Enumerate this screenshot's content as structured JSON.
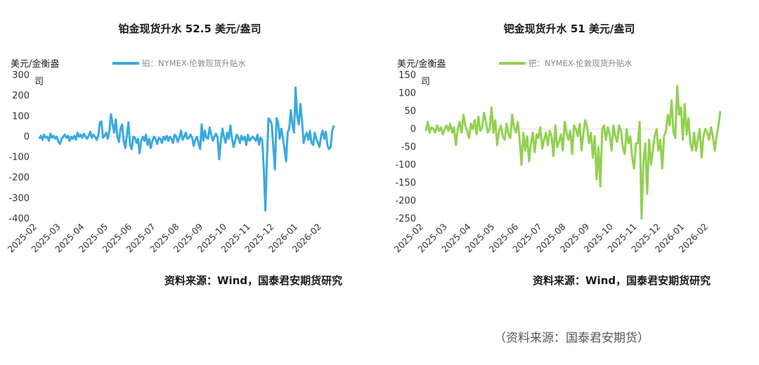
{
  "charts": [
    {
      "title": "铂金现货升水 52.5 美元/盎司",
      "source": "资料来源：Wind，国泰君安期货研究"
    },
    {
      "title": "钯金现货升水 51 美元/盎司",
      "source": "资料来源：Wind，国泰君安期货研究"
    }
  ],
  "footer": "（资料来源：国泰君安期货）",
  "chart_data": [
    {
      "type": "line",
      "title": "铂金现货升水 52.5 美元/盎司",
      "ylabel": "美元/金衡盎司",
      "ylim": [
        -400,
        300
      ],
      "yticks": [
        300,
        200,
        100,
        0,
        -100,
        -200,
        -300,
        -400
      ],
      "x_ticks": [
        "2025-02",
        "2025-03",
        "2025-04",
        "2025-05",
        "2025-06",
        "2025-07",
        "2025-08",
        "2025-09",
        "2025-10",
        "2025-11",
        "2025-12",
        "2026-01",
        "2026-02"
      ],
      "legend_position": "top",
      "grid": false,
      "color": "#3aa9e0",
      "series": [
        {
          "name": "铂：NYMEX-伦敦现货升贴水",
          "values": [
            -10,
            5,
            -15,
            10,
            -5,
            0,
            -20,
            15,
            -5,
            5,
            -10,
            0,
            -25,
            -35,
            -10,
            0,
            10,
            -5,
            5,
            -20,
            0,
            -10,
            5,
            -15,
            20,
            0,
            10,
            -5,
            15,
            0,
            -10,
            5,
            25,
            -5,
            10,
            0,
            -15,
            5,
            70,
            75,
            -5,
            5,
            20,
            -10,
            30,
            110,
            60,
            20,
            85,
            0,
            -25,
            40,
            60,
            -20,
            -55,
            10,
            70,
            -40,
            -60,
            0,
            -5,
            -30,
            -10,
            -80,
            -20,
            0,
            -20,
            10,
            -40,
            -10,
            -55,
            -20,
            0,
            -10,
            -35,
            -5,
            -10,
            -30,
            0,
            -15,
            5,
            -20,
            0,
            -10,
            -30,
            10,
            0,
            -25,
            -5,
            30,
            -15,
            0,
            20,
            -10,
            -5,
            10,
            -5,
            -45,
            -15,
            0,
            -30,
            -60,
            60,
            -20,
            30,
            -5,
            -10,
            45,
            10,
            -20,
            0,
            15,
            -5,
            -110,
            -20,
            40,
            0,
            -30,
            20,
            -10,
            55,
            -5,
            -50,
            -20,
            10,
            -5,
            -30,
            5,
            -15,
            0,
            -40,
            10,
            -20,
            -10,
            0,
            -10,
            -20,
            10,
            -40,
            -5,
            -15,
            -150,
            -360,
            -100,
            90,
            80,
            60,
            -50,
            -160,
            90,
            70,
            -10,
            40,
            -5,
            -60,
            -120,
            20,
            40,
            130,
            60,
            20,
            240,
            100,
            60,
            160,
            80,
            -30,
            0,
            20,
            -15,
            30,
            -30,
            -40,
            20,
            -10,
            -30,
            -50,
            5,
            30,
            -10,
            25,
            -40,
            -60,
            -50,
            30,
            55
          ]
        }
      ]
    },
    {
      "type": "line",
      "title": "钯金现货升水 51 美元/盎司",
      "ylabel": "美元/金衡盎司",
      "ylim": [
        -250,
        150
      ],
      "yticks": [
        150,
        100,
        50,
        0,
        -50,
        -100,
        -150,
        -200,
        -250
      ],
      "x_ticks": [
        "2025-02",
        "2025-03",
        "2025-04",
        "2025-05",
        "2025-06",
        "2025-07",
        "2025-08",
        "2025-09",
        "2025-10",
        "2025-11",
        "2025-12",
        "2026-01",
        "2026-02"
      ],
      "legend_position": "top",
      "grid": false,
      "color": "#92d050",
      "series": [
        {
          "name": "钯：NYMEX-伦敦现货升贴水",
          "values": [
            -5,
            20,
            -10,
            5,
            0,
            -10,
            10,
            -5,
            5,
            -15,
            0,
            10,
            -5,
            15,
            -10,
            5,
            -45,
            0,
            20,
            -10,
            40,
            10,
            -5,
            -25,
            15,
            0,
            25,
            -15,
            35,
            -5,
            5,
            45,
            20,
            -10,
            0,
            60,
            -10,
            25,
            -45,
            -5,
            10,
            -20,
            -30,
            15,
            -15,
            -25,
            40,
            5,
            -10,
            20,
            -30,
            -100,
            -10,
            -60,
            -20,
            -90,
            -40,
            -10,
            -65,
            -15,
            -25,
            5,
            -55,
            -30,
            -10,
            -45,
            -5,
            -20,
            -75,
            10,
            -50,
            -35,
            -15,
            -60,
            20,
            -10,
            -30,
            -5,
            -70,
            10,
            0,
            -20,
            15,
            -60,
            -10,
            25,
            5,
            -40,
            -10,
            -80,
            -20,
            -140,
            -50,
            -160,
            0,
            10,
            -30,
            5,
            -15,
            -60,
            10,
            -20,
            -35,
            10,
            -5,
            -50,
            -70,
            0,
            -40,
            -20,
            -80,
            -110,
            -40,
            -40,
            20,
            -260,
            -90,
            -40,
            -180,
            -30,
            -100,
            -60,
            -20,
            0,
            -60,
            -30,
            -110,
            -20,
            -5,
            40,
            10,
            80,
            -10,
            -25,
            120,
            40,
            60,
            -30,
            70,
            -15,
            30,
            -40,
            -60,
            -10,
            -60,
            -30,
            0,
            -80,
            -20,
            0,
            -10,
            -30,
            5,
            -20,
            -60,
            -20,
            10,
            50
          ]
        }
      ]
    }
  ],
  "labels": {
    "unit_line1": "美元/金衡盎",
    "unit_line2": "司"
  }
}
